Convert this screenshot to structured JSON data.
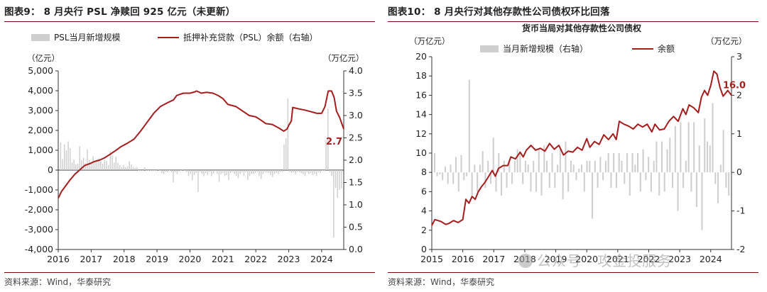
{
  "panels": [
    {
      "title": "图表9：  8 月央行 PSL 净赎回 925 亿元（未更新）",
      "source": "资料来源：Wind，华泰研究",
      "chart_data": {
        "type": "bar+line",
        "subtitle": "",
        "legend": [
          "PSL当月新增规模",
          "抵押补充贷款（PSL）余额（右轴）"
        ],
        "legend_placement": "top-center",
        "left_unit": "（亿元）",
        "right_unit": "（万亿元）",
        "y_left_range": [
          -4000,
          5000
        ],
        "y_left_ticks": [
          "5,000",
          "4,000",
          "3,000",
          "2,000",
          "1,000",
          "0",
          "-1,000",
          "-2,000",
          "-3,000",
          "-4,000"
        ],
        "y_right_range": [
          0,
          4
        ],
        "y_right_ticks": [
          "4.0",
          "3.5",
          "3.0",
          "2.5",
          "2.0",
          "1.5",
          "1.0",
          "0.5",
          "0.0"
        ],
        "x_range": [
          2016,
          2024.67
        ],
        "x_ticks": [
          "2016",
          "2017",
          "2018",
          "2019",
          "2020",
          "2021",
          "2022",
          "2023",
          "2024"
        ],
        "grid": false,
        "last_value_label": "2.7",
        "series": [
          {
            "name": "PSL当月新增规模",
            "type": "bar",
            "axis": "left",
            "values": [
              1400,
              550,
              1300,
              1000,
              1450,
              1100,
              380,
              520,
              300,
              320,
              1200,
              500,
              620,
              350,
              1040,
              500,
              320,
              700,
              450,
              550,
              600,
              460,
              320,
              520,
              460,
              250,
              950,
              730,
              380,
              680,
              360,
              250,
              150,
              250,
              150,
              200,
              450,
              280,
              150,
              100,
              150,
              0,
              0,
              0,
              150,
              0,
              0,
              0,
              0,
              0,
              0,
              50,
              0,
              -150,
              -200,
              -80,
              -100,
              0,
              -100,
              -620,
              -100,
              -200,
              -80,
              0,
              50,
              0,
              -100,
              -300,
              -200,
              -500,
              -250,
              -150,
              -1100,
              -100,
              -200,
              -300,
              -150,
              -250,
              -100,
              -300,
              -180,
              -50,
              -200,
              -600,
              -200,
              -150,
              -300,
              -250,
              -500,
              -150,
              -100,
              -200,
              -300,
              -400,
              -200,
              -100,
              -300,
              -100,
              -500,
              -300,
              -200,
              -200,
              -150,
              -100,
              -300,
              -450,
              -200,
              -100,
              -120,
              -150,
              -250,
              -350,
              -200,
              -150,
              -200,
              -100,
              -80,
              1300,
              1600,
              3600,
              -100,
              -150,
              -100,
              -200,
              -80,
              -100,
              -150,
              -200,
              -300,
              -100,
              -200,
              -150,
              -250,
              -200,
              -300,
              -100,
              -150,
              0,
              0,
              1500,
              3100,
              -100,
              -300,
              -3400,
              -900,
              -1400,
              -1000,
              -925
            ]
          },
          {
            "name": "抵押补充贷款（PSL）余额（右轴）",
            "type": "line",
            "axis": "right",
            "points": [
              [
                2016.0,
                1.15
              ],
              [
                2016.1,
                1.3
              ],
              [
                2016.25,
                1.45
              ],
              [
                2016.35,
                1.55
              ],
              [
                2016.5,
                1.68
              ],
              [
                2016.65,
                1.78
              ],
              [
                2016.8,
                1.88
              ],
              [
                2016.95,
                1.92
              ],
              [
                2017.1,
                1.97
              ],
              [
                2017.25,
                2.0
              ],
              [
                2017.4,
                2.05
              ],
              [
                2017.55,
                2.12
              ],
              [
                2017.75,
                2.22
              ],
              [
                2017.9,
                2.3
              ],
              [
                2018.1,
                2.38
              ],
              [
                2018.3,
                2.47
              ],
              [
                2018.5,
                2.65
              ],
              [
                2018.7,
                2.85
              ],
              [
                2018.9,
                3.05
              ],
              [
                2019.1,
                3.2
              ],
              [
                2019.3,
                3.28
              ],
              [
                2019.5,
                3.35
              ],
              [
                2019.6,
                3.45
              ],
              [
                2019.8,
                3.5
              ],
              [
                2020.0,
                3.5
              ],
              [
                2020.15,
                3.53
              ],
              [
                2020.2,
                3.55
              ],
              [
                2020.35,
                3.5
              ],
              [
                2020.5,
                3.52
              ],
              [
                2020.7,
                3.5
              ],
              [
                2020.85,
                3.45
              ],
              [
                2021.0,
                3.38
              ],
              [
                2021.15,
                3.25
              ],
              [
                2021.4,
                3.2
              ],
              [
                2021.6,
                3.1
              ],
              [
                2021.8,
                3.0
              ],
              [
                2022.0,
                2.97
              ],
              [
                2022.15,
                2.9
              ],
              [
                2022.3,
                2.82
              ],
              [
                2022.5,
                2.8
              ],
              [
                2022.7,
                2.72
              ],
              [
                2022.85,
                2.65
              ],
              [
                2022.95,
                2.7
              ],
              [
                2023.0,
                2.78
              ],
              [
                2023.08,
                2.88
              ],
              [
                2023.12,
                3.18
              ],
              [
                2023.3,
                3.15
              ],
              [
                2023.5,
                3.12
              ],
              [
                2023.7,
                3.08
              ],
              [
                2023.85,
                3.05
              ],
              [
                2024.0,
                3.05
              ],
              [
                2024.1,
                3.2
              ],
              [
                2024.2,
                3.55
              ],
              [
                2024.3,
                3.55
              ],
              [
                2024.38,
                3.4
              ],
              [
                2024.45,
                3.1
              ],
              [
                2024.55,
                2.95
              ],
              [
                2024.62,
                2.8
              ],
              [
                2024.67,
                2.7
              ]
            ]
          }
        ]
      }
    },
    {
      "title": "图表10：  8 月央行对其他存款性公司债权环比回落",
      "source": "资料来源：Wind，华泰研究",
      "chart_data": {
        "type": "bar+line",
        "subtitle": "货币当局对其他存款性公司债权",
        "legend": [
          "当月新增规模（右轴）",
          "余额"
        ],
        "legend_placement": "top-center",
        "left_unit": "（万亿元）",
        "right_unit": "（万亿元）",
        "y_left_range": [
          0,
          20
        ],
        "y_left_ticks": [
          "20",
          "18",
          "16",
          "14",
          "12",
          "10",
          "8",
          "6",
          "4",
          "2",
          "0"
        ],
        "y_right_range": [
          -2,
          3
        ],
        "y_right_ticks": [
          "3",
          "2",
          "1",
          "0",
          "-1",
          "-2"
        ],
        "x_range": [
          2015,
          2024.67
        ],
        "x_ticks": [
          "2015",
          "2016",
          "2017",
          "2018",
          "2019",
          "2020",
          "2021",
          "2022",
          "2023",
          "2024"
        ],
        "grid": false,
        "last_value_label": "16.0",
        "series": [
          {
            "name": "当月新增规模（右轴）",
            "type": "bar",
            "axis": "right",
            "values": [
              0.5,
              -0.1,
              -0.05,
              -0.2,
              0.15,
              -0.3,
              0.2,
              -0.3,
              0.4,
              -0.5,
              0.45,
              -0.2,
              -0.1,
              2.4,
              -0.6,
              0.2,
              -0.5,
              0.2,
              0.55,
              -0.4,
              0.3,
              -0.3,
              0.9,
              -0.5,
              0.5,
              -0.6,
              0.3,
              -0.4,
              0.3,
              -0.3,
              0.3,
              0.6,
              0.5,
              -0.3,
              0.3,
              0.2,
              -0.5,
              0.3,
              -0.5,
              0.6,
              -0.6,
              0.7,
              0.3,
              -0.4,
              0.5,
              -0.4,
              0.2,
              0.6,
              -0.7,
              0.8,
              -0.5,
              0.3,
              0.2,
              -0.2,
              0.1,
              0.2,
              -0.5,
              0.3,
              0.3,
              -1.2,
              0.3,
              -0.4,
              0.4,
              -0.2,
              0.3,
              0.5,
              -0.4,
              0.5,
              -0.4,
              0.5,
              0.3,
              -0.3,
              0.5,
              -0.6,
              0.5,
              0.2,
              0.5,
              -0.5,
              0.6,
              -0.2,
              0.4,
              -0.5,
              0.3,
              0.8,
              -0.6,
              0.8,
              -0.5,
              0.6,
              0.9,
              -0.4,
              1.2,
              -1.0,
              1.3,
              -0.4,
              0.3,
              1.3,
              -0.5,
              1.3,
              -0.9,
              0.7,
              -1.5,
              1.4,
              0.8,
              0.7,
              1.8,
              -0.3,
              -0.8,
              0.2,
              1.1,
              -0.4,
              -0.6
            ]
          },
          {
            "name": "余额",
            "type": "line",
            "axis": "left",
            "points": [
              [
                2015.0,
                2.5
              ],
              [
                2015.1,
                3.1
              ],
              [
                2015.3,
                2.9
              ],
              [
                2015.45,
                2.6
              ],
              [
                2015.55,
                2.7
              ],
              [
                2015.7,
                3.0
              ],
              [
                2015.85,
                2.8
              ],
              [
                2016.0,
                3.1
              ],
              [
                2016.1,
                5.2
              ],
              [
                2016.2,
                4.8
              ],
              [
                2016.3,
                5.5
              ],
              [
                2016.4,
                5.2
              ],
              [
                2016.5,
                6.0
              ],
              [
                2016.6,
                6.5
              ],
              [
                2016.7,
                6.9
              ],
              [
                2016.8,
                7.4
              ],
              [
                2016.95,
                8.2
              ],
              [
                2017.05,
                7.6
              ],
              [
                2017.15,
                8.4
              ],
              [
                2017.3,
                8.7
              ],
              [
                2017.45,
                8.7
              ],
              [
                2017.55,
                9.6
              ],
              [
                2017.7,
                9.4
              ],
              [
                2017.85,
                10.1
              ],
              [
                2017.95,
                9.6
              ],
              [
                2018.05,
                10.3
              ],
              [
                2018.2,
                10.8
              ],
              [
                2018.35,
                10.3
              ],
              [
                2018.5,
                10.5
              ],
              [
                2018.65,
                10.2
              ],
              [
                2018.8,
                11.0
              ],
              [
                2018.95,
                10.4
              ],
              [
                2019.1,
                10.8
              ],
              [
                2019.25,
                9.8
              ],
              [
                2019.4,
                10.2
              ],
              [
                2019.55,
                10.1
              ],
              [
                2019.7,
                10.6
              ],
              [
                2019.85,
                10.3
              ],
              [
                2020.0,
                11.5
              ],
              [
                2020.1,
                10.6
              ],
              [
                2020.25,
                11.2
              ],
              [
                2020.4,
                10.9
              ],
              [
                2020.55,
                11.9
              ],
              [
                2020.7,
                11.4
              ],
              [
                2020.85,
                12.0
              ],
              [
                2020.95,
                11.4
              ],
              [
                2021.05,
                13.3
              ],
              [
                2021.2,
                13.0
              ],
              [
                2021.35,
                12.8
              ],
              [
                2021.5,
                12.5
              ],
              [
                2021.65,
                13.0
              ],
              [
                2021.8,
                12.7
              ],
              [
                2021.95,
                13.0
              ],
              [
                2022.1,
                12.2
              ],
              [
                2022.2,
                13.0
              ],
              [
                2022.35,
                12.4
              ],
              [
                2022.5,
                12.5
              ],
              [
                2022.65,
                13.3
              ],
              [
                2022.8,
                13.8
              ],
              [
                2022.95,
                13.3
              ],
              [
                2023.1,
                14.6
              ],
              [
                2023.2,
                14.0
              ],
              [
                2023.3,
                15.0
              ],
              [
                2023.45,
                14.7
              ],
              [
                2023.6,
                14.2
              ],
              [
                2023.7,
                15.8
              ],
              [
                2023.8,
                16.5
              ],
              [
                2023.9,
                16.0
              ],
              [
                2024.0,
                17.0
              ],
              [
                2024.1,
                18.5
              ],
              [
                2024.2,
                18.2
              ],
              [
                2024.3,
                16.8
              ],
              [
                2024.4,
                15.9
              ],
              [
                2024.5,
                16.3
              ],
              [
                2024.55,
                16.5
              ],
              [
                2024.62,
                16.2
              ],
              [
                2024.67,
                16.0
              ]
            ]
          }
        ]
      }
    }
  ],
  "watermark": "公众号 · 攻金投服务",
  "colors": {
    "line": "#a51d1d",
    "bar": "#cfcfcf",
    "accent": "#7a0a0a",
    "axis": "#333333"
  }
}
